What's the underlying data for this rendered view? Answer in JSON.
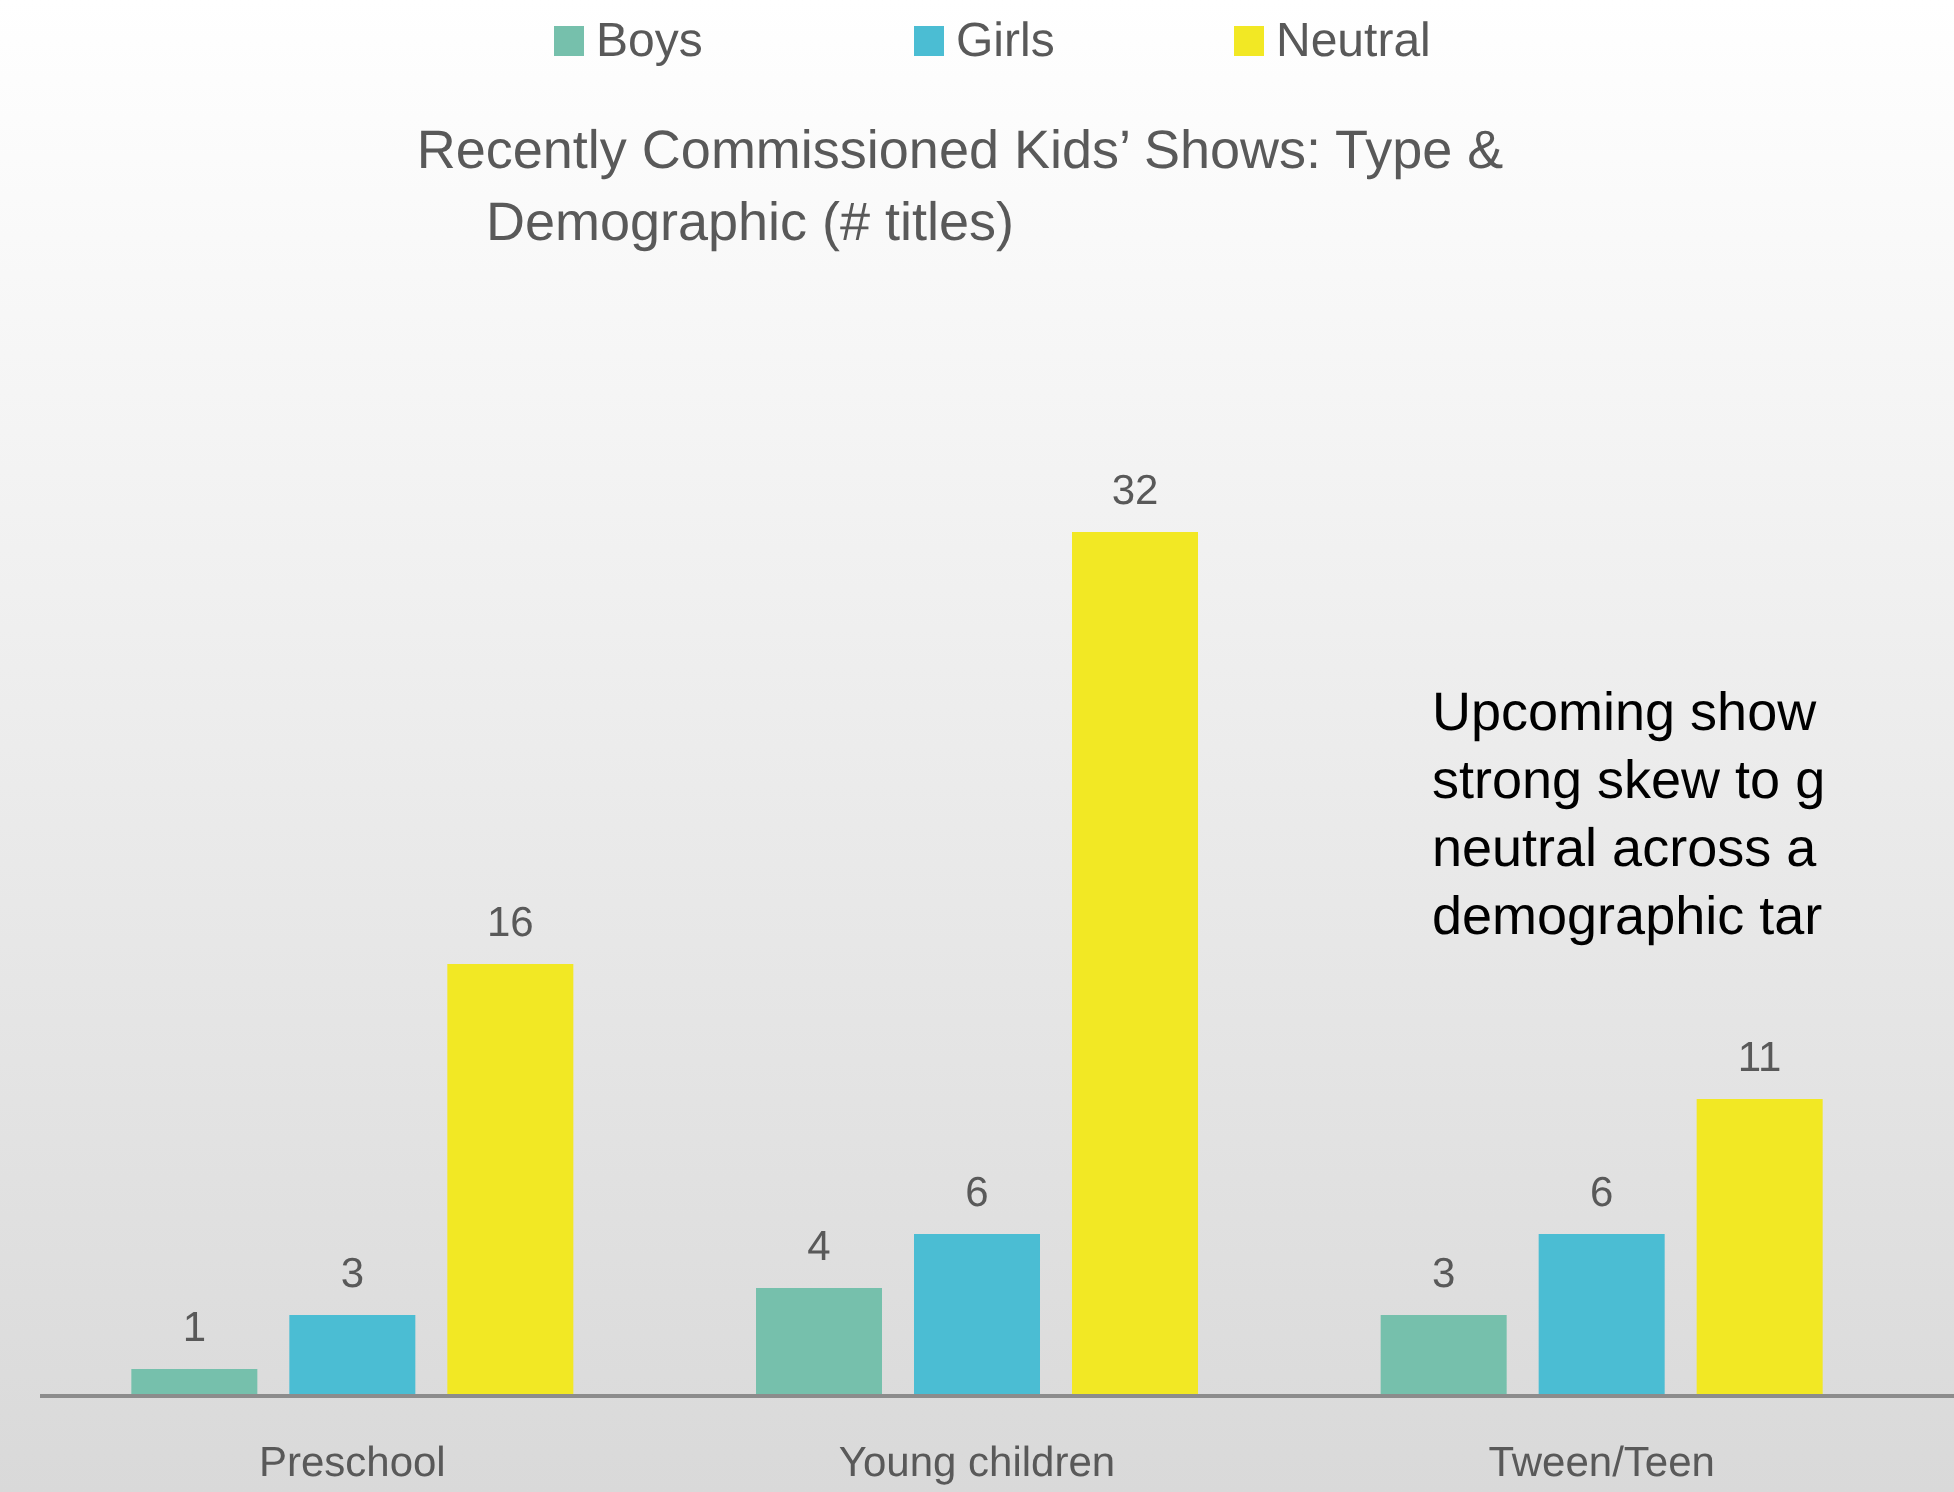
{
  "chart_data": {
    "type": "bar",
    "title": "Recently Commissioned Kids’ Shows: Type & Demographic (# titles)",
    "categories": [
      "Preschool",
      "Young children",
      "Tween/Teen"
    ],
    "series": [
      {
        "name": "Boys",
        "color": "#76c0ac",
        "values": [
          1,
          4,
          3
        ]
      },
      {
        "name": "Girls",
        "color": "#4bbdd3",
        "values": [
          3,
          6,
          6
        ]
      },
      {
        "name": "Neutral",
        "color": "#f2e824",
        "values": [
          16,
          32,
          11
        ]
      }
    ],
    "data_labels": true,
    "legend": "top",
    "annotations": [
      "Upcoming show\nstrong skew to g\nneutral across a\ndemographic tar"
    ]
  }
}
